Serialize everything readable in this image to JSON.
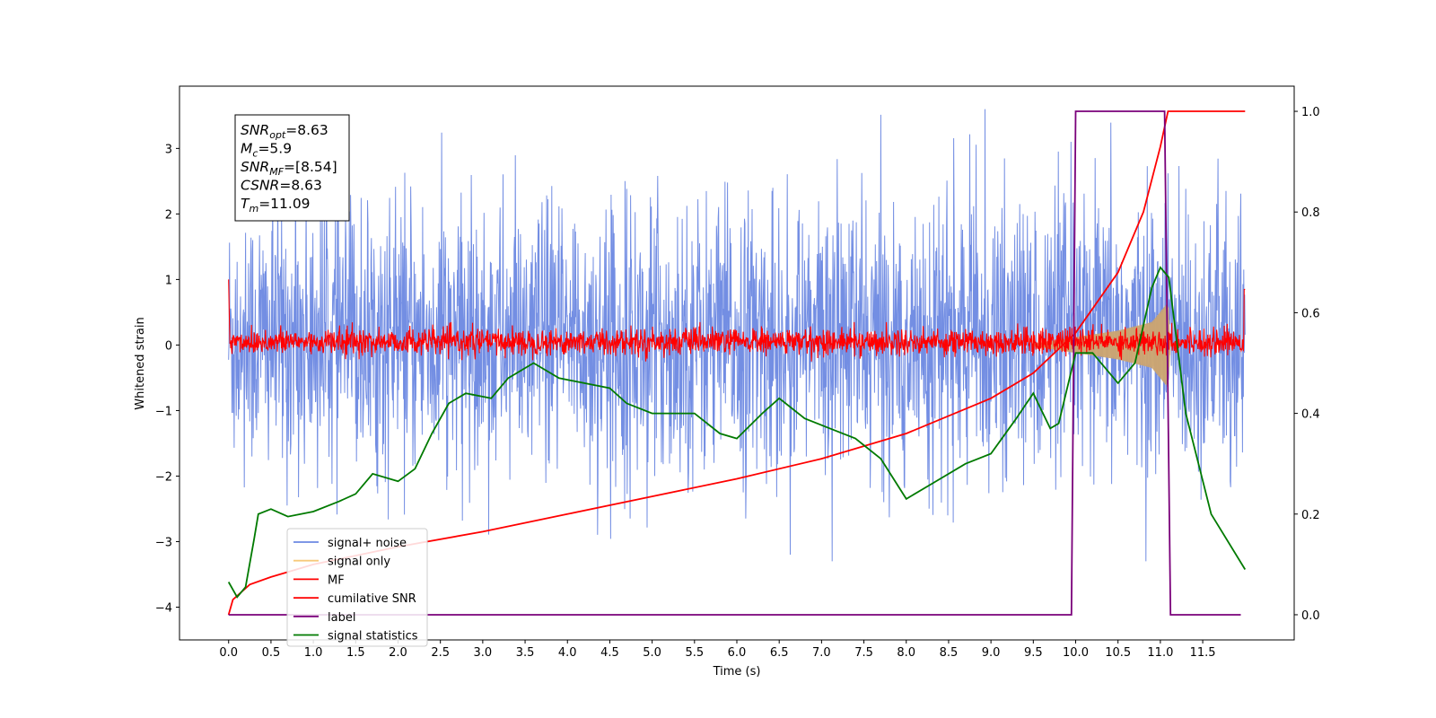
{
  "chart_data": {
    "type": "line",
    "xlabel": "Time (s)",
    "ylabel": "Whitened strain",
    "xlim": [
      -0.58,
      12.58
    ],
    "ylim": [
      -4.5,
      3.95
    ],
    "ylim_right": [
      -0.05,
      1.05
    ],
    "x_ticks": [
      0.0,
      0.5,
      1.0,
      1.5,
      2.0,
      2.5,
      3.0,
      3.5,
      4.0,
      4.5,
      5.0,
      5.5,
      6.0,
      6.5,
      7.0,
      7.5,
      8.0,
      8.5,
      9.0,
      9.5,
      10.0,
      10.5,
      11.0,
      11.5
    ],
    "x_tick_labels": [
      "0.0",
      "0.5",
      "1.0",
      "1.5",
      "2.0",
      "2.5",
      "3.0",
      "3.5",
      "4.0",
      "4.5",
      "5.0",
      "5.5",
      "6.0",
      "6.5",
      "7.0",
      "7.5",
      "8.0",
      "8.5",
      "9.0",
      "9.5",
      "10.0",
      "10.5",
      "11.0",
      "11.5"
    ],
    "y_ticks": [
      -4,
      -3,
      -2,
      -1,
      0,
      1,
      2,
      3
    ],
    "y_tick_labels": [
      "−4",
      "−3",
      "−2",
      "−1",
      "0",
      "1",
      "2",
      "3"
    ],
    "y_ticks_right": [
      0.0,
      0.2,
      0.4,
      0.6,
      0.8,
      1.0
    ],
    "y_tick_labels_right": [
      "0.0",
      "0.2",
      "0.4",
      "0.6",
      "0.8",
      "1.0"
    ],
    "info_box": [
      {
        "base": "SNR",
        "sub": "opt",
        "value": "=8.63"
      },
      {
        "base": "M",
        "sub": "c",
        "value": "=5.9"
      },
      {
        "base": "SNR",
        "sub": "MF",
        "value": "=[8.54]"
      },
      {
        "base": "CSNR",
        "sub": "",
        "value": "=8.63"
      },
      {
        "base": "T",
        "sub": "m",
        "value": "=11.09"
      }
    ],
    "legend_position": "lower-left",
    "series": [
      {
        "name": "signal+ noise",
        "color": "#6b88e2",
        "axis": "left",
        "description_range": [
          -3.3,
          3.6
        ],
        "x_range": [
          0.0,
          12.0
        ]
      },
      {
        "name": "signal only",
        "color": "#f7c97a",
        "axis": "left",
        "envelope_points": [
          [
            9.5,
            0.02
          ],
          [
            10.0,
            0.12
          ],
          [
            10.5,
            0.22
          ],
          [
            10.9,
            0.35
          ],
          [
            11.09,
            0.65
          ],
          [
            11.12,
            0.0
          ]
        ]
      },
      {
        "name": "MF",
        "color": "#ff0000",
        "axis": "left",
        "description_range": [
          -0.25,
          0.35
        ],
        "x_range": [
          0.0,
          12.0
        ]
      },
      {
        "name": "cumilative SNR",
        "color": "#ff0000",
        "axis": "right",
        "points": [
          [
            0.0,
            0.0
          ],
          [
            0.05,
            0.03
          ],
          [
            0.25,
            0.06
          ],
          [
            0.5,
            0.075
          ],
          [
            1.0,
            0.1
          ],
          [
            2.0,
            0.135
          ],
          [
            3.0,
            0.165
          ],
          [
            4.0,
            0.2
          ],
          [
            5.0,
            0.235
          ],
          [
            6.0,
            0.27
          ],
          [
            7.0,
            0.31
          ],
          [
            8.0,
            0.36
          ],
          [
            9.0,
            0.43
          ],
          [
            9.5,
            0.48
          ],
          [
            10.0,
            0.56
          ],
          [
            10.5,
            0.68
          ],
          [
            10.8,
            0.8
          ],
          [
            11.0,
            0.93
          ],
          [
            11.09,
            1.0
          ],
          [
            12.0,
            1.0
          ]
        ]
      },
      {
        "name": "label",
        "color": "#7a007a",
        "axis": "right",
        "points": [
          [
            0.0,
            0.0
          ],
          [
            9.95,
            0.0
          ],
          [
            10.0,
            1.0
          ],
          [
            11.05,
            1.0
          ],
          [
            11.12,
            0.0
          ],
          [
            11.95,
            0.0
          ]
        ]
      },
      {
        "name": "signal statistics",
        "color": "#007a00",
        "axis": "right",
        "points": [
          [
            0.0,
            0.065
          ],
          [
            0.1,
            0.035
          ],
          [
            0.2,
            0.055
          ],
          [
            0.3,
            0.15
          ],
          [
            0.35,
            0.2
          ],
          [
            0.5,
            0.21
          ],
          [
            0.7,
            0.195
          ],
          [
            1.0,
            0.205
          ],
          [
            1.3,
            0.225
          ],
          [
            1.5,
            0.24
          ],
          [
            1.7,
            0.28
          ],
          [
            2.0,
            0.265
          ],
          [
            2.2,
            0.29
          ],
          [
            2.4,
            0.36
          ],
          [
            2.6,
            0.42
          ],
          [
            2.8,
            0.44
          ],
          [
            3.1,
            0.43
          ],
          [
            3.3,
            0.47
          ],
          [
            3.6,
            0.5
          ],
          [
            3.9,
            0.47
          ],
          [
            4.2,
            0.46
          ],
          [
            4.5,
            0.45
          ],
          [
            4.7,
            0.42
          ],
          [
            5.0,
            0.4
          ],
          [
            5.3,
            0.4
          ],
          [
            5.5,
            0.4
          ],
          [
            5.8,
            0.36
          ],
          [
            6.0,
            0.35
          ],
          [
            6.3,
            0.4
          ],
          [
            6.5,
            0.43
          ],
          [
            6.8,
            0.39
          ],
          [
            7.1,
            0.37
          ],
          [
            7.4,
            0.35
          ],
          [
            7.7,
            0.31
          ],
          [
            8.0,
            0.23
          ],
          [
            8.3,
            0.26
          ],
          [
            8.7,
            0.3
          ],
          [
            9.0,
            0.32
          ],
          [
            9.3,
            0.39
          ],
          [
            9.5,
            0.44
          ],
          [
            9.7,
            0.37
          ],
          [
            9.8,
            0.38
          ],
          [
            10.0,
            0.52
          ],
          [
            10.2,
            0.52
          ],
          [
            10.5,
            0.46
          ],
          [
            10.7,
            0.5
          ],
          [
            10.9,
            0.65
          ],
          [
            11.0,
            0.69
          ],
          [
            11.05,
            0.68
          ],
          [
            11.1,
            0.67
          ],
          [
            11.3,
            0.4
          ],
          [
            11.6,
            0.2
          ],
          [
            12.0,
            0.09
          ]
        ]
      }
    ]
  }
}
